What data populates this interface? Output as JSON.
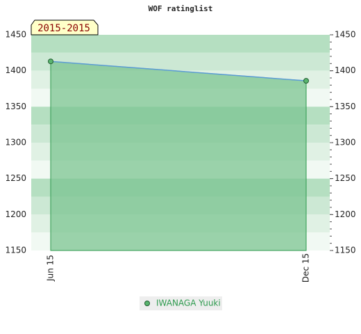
{
  "chart_data": {
    "type": "area",
    "title": "WOF ratinglist",
    "annotation": "2015-2015",
    "categories": [
      "Jun 15",
      "Dec 15"
    ],
    "series": [
      {
        "name": "IWANAGA Yuuki",
        "color": "#5b9bd5",
        "fill": "#7cc492",
        "values": [
          1413,
          1386
        ]
      }
    ],
    "ylim": [
      1150,
      1450
    ],
    "yticks": [
      1150,
      1200,
      1250,
      1300,
      1350,
      1400,
      1450
    ]
  }
}
